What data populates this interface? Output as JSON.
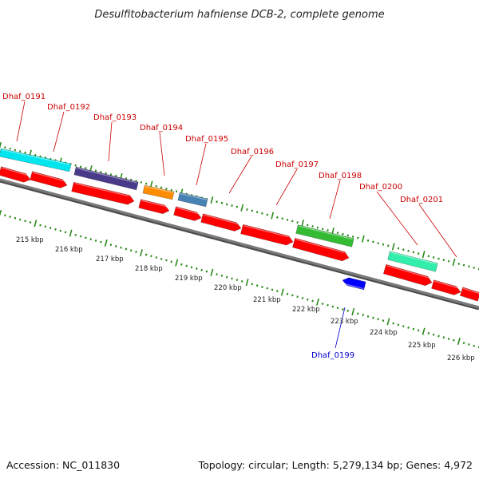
{
  "title": "Desulfitobacterium hafniense DCB-2, complete genome",
  "footer": {
    "accession": "Accession: NC_011830",
    "summary": "Topology: circular; Length: 5,279,134 bp; Genes: 4,972"
  },
  "colors": {
    "cds": "#ff0000",
    "backbone": "#7a7a7a",
    "ticks": "#2a8a1a",
    "plus_label": "#cc0000",
    "minus_label": "#0000cc"
  },
  "genes": [
    {
      "id": "Dhaf_0191",
      "strand": "+",
      "color": "#00e5ee"
    },
    {
      "id": "Dhaf_0192",
      "strand": "+",
      "color": "#4a3a8a"
    },
    {
      "id": "Dhaf_0193",
      "strand": "+",
      "color": "#4a3a8a"
    },
    {
      "id": "Dhaf_0194",
      "strand": "+",
      "color": "#ff8c00"
    },
    {
      "id": "Dhaf_0195",
      "strand": "+",
      "color": "#4682b4"
    },
    {
      "id": "Dhaf_0196",
      "strand": "+",
      "color": "#ff0000"
    },
    {
      "id": "Dhaf_0197",
      "strand": "+",
      "color": "#ff0000"
    },
    {
      "id": "Dhaf_0198",
      "strand": "+",
      "color": "#33bb33"
    },
    {
      "id": "Dhaf_0199",
      "strand": "-",
      "color": "#0000ff"
    },
    {
      "id": "Dhaf_0200",
      "strand": "+",
      "color": "#33eeaa"
    },
    {
      "id": "Dhaf_0201",
      "strand": "+",
      "color": "#ff0000"
    }
  ],
  "kbp_labels": [
    "215 kbp",
    "216 kbp",
    "217 kbp",
    "218 kbp",
    "219 kbp",
    "220 kbp",
    "221 kbp",
    "222 kbp",
    "223 kbp",
    "224 kbp",
    "225 kbp",
    "226 kbp"
  ]
}
